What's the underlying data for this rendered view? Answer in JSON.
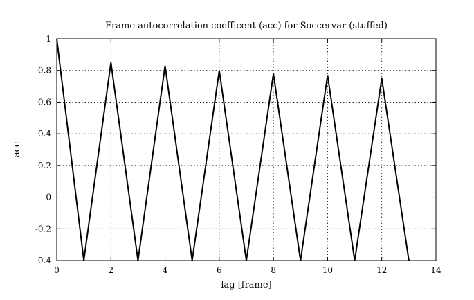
{
  "chart_data": {
    "type": "line",
    "title": "Frame autocorrelation coefficent (acc) for Soccervar (stuffed)",
    "xlabel": "lag [frame]",
    "ylabel": "acc",
    "xlim": [
      0,
      14
    ],
    "ylim": [
      -0.4,
      1
    ],
    "xticks": [
      0,
      2,
      4,
      6,
      8,
      10,
      12,
      14
    ],
    "yticks": [
      -0.4,
      -0.2,
      0,
      0.2,
      0.4,
      0.6,
      0.8,
      1
    ],
    "grid": true,
    "series": [
      {
        "x": [
          0,
          1,
          2,
          3,
          4,
          5,
          6,
          7,
          8,
          9,
          10,
          11,
          12,
          13
        ],
        "y": [
          1.0,
          -0.4,
          0.85,
          -0.4,
          0.83,
          -0.4,
          0.8,
          -0.4,
          0.78,
          -0.4,
          0.77,
          -0.4,
          0.75,
          -0.4
        ]
      }
    ]
  }
}
